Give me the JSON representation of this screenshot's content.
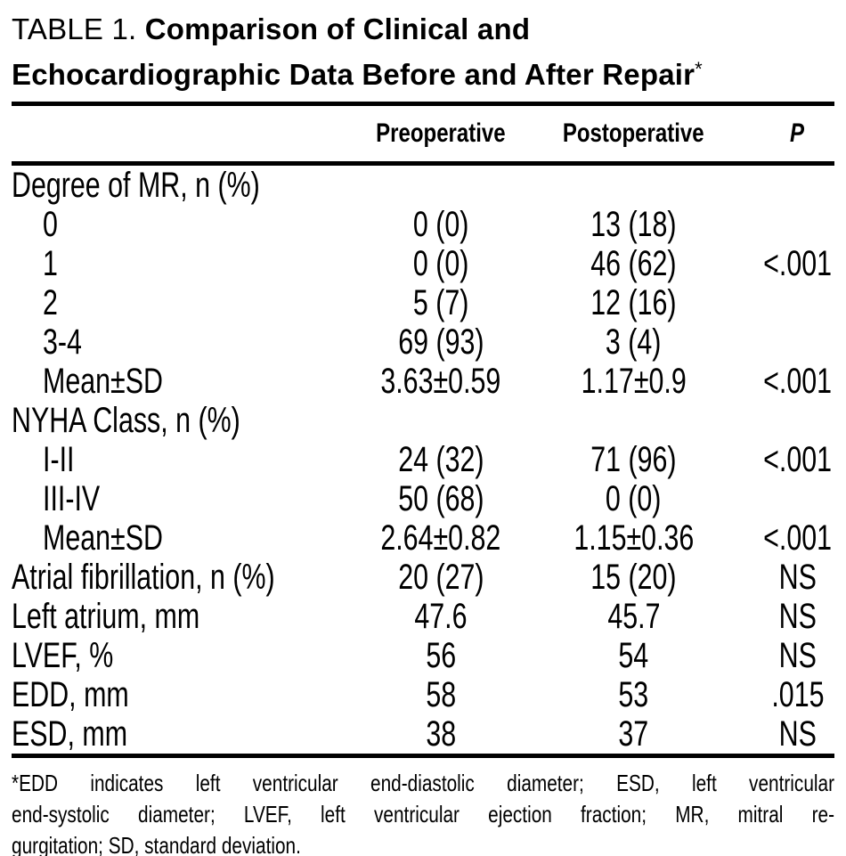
{
  "title": {
    "prefix": "TABLE 1. ",
    "line1": "Comparison of Clinical and",
    "line2": "Echocardiographic Data Before and After Repair",
    "footnote_marker": "*"
  },
  "header": {
    "preoperative": "Preoperative",
    "postoperative": "Postoperative",
    "p": "P"
  },
  "table": {
    "rows": [
      {
        "label": "Degree of MR, n (%)",
        "indent": false,
        "preoperative": "",
        "postoperative": "",
        "p": ""
      },
      {
        "label": "0",
        "indent": true,
        "preoperative": "0 (0)",
        "postoperative": "13 (18)",
        "p": ""
      },
      {
        "label": "1",
        "indent": true,
        "preoperative": "0 (0)",
        "postoperative": "46 (62)",
        "p": "<.001"
      },
      {
        "label": "2",
        "indent": true,
        "preoperative": "5 (7)",
        "postoperative": "12 (16)",
        "p": ""
      },
      {
        "label": "3-4",
        "indent": true,
        "preoperative": "69 (93)",
        "postoperative": "3 (4)",
        "p": ""
      },
      {
        "label": "Mean±SD",
        "indent": true,
        "preoperative": "3.63±0.59",
        "postoperative": "1.17±0.9",
        "p": "<.001"
      },
      {
        "label": "NYHA Class, n (%)",
        "indent": false,
        "preoperative": "",
        "postoperative": "",
        "p": ""
      },
      {
        "label": "I-II",
        "indent": true,
        "preoperative": "24 (32)",
        "postoperative": "71 (96)",
        "p": "<.001"
      },
      {
        "label": "III-IV",
        "indent": true,
        "preoperative": "50 (68)",
        "postoperative": "0 (0)",
        "p": ""
      },
      {
        "label": "Mean±SD",
        "indent": true,
        "preoperative": "2.64±0.82",
        "postoperative": "1.15±0.36",
        "p": "<.001"
      },
      {
        "label": "Atrial fibrillation, n (%)",
        "indent": false,
        "preoperative": "20 (27)",
        "postoperative": "15 (20)",
        "p": "NS"
      },
      {
        "label": "Left atrium, mm",
        "indent": false,
        "preoperative": "47.6",
        "postoperative": "45.7",
        "p": "NS"
      },
      {
        "label": "LVEF, %",
        "indent": false,
        "preoperative": "56",
        "postoperative": "54",
        "p": "NS"
      },
      {
        "label": "EDD, mm",
        "indent": false,
        "preoperative": "58",
        "postoperative": "53",
        "p": ".015"
      },
      {
        "label": "ESD, mm",
        "indent": false,
        "preoperative": "38",
        "postoperative": "37",
        "p": "NS"
      }
    ]
  },
  "footnote": {
    "lines": [
      "*EDD indicates left ventricular end-diastolic diameter; ESD, left ventricular",
      "end-systolic diameter; LVEF, left ventricular ejection fraction; MR, mitral re-",
      "gurgitation; SD, standard deviation."
    ]
  },
  "colors": {
    "text": "#000000",
    "background": "#ffffff",
    "rule": "#000000"
  }
}
